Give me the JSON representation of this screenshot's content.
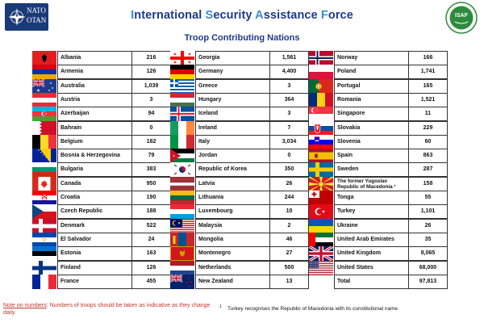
{
  "header": {
    "nato_line1": "NATO",
    "nato_line2": "OTAN",
    "title_parts": [
      {
        "text": "I",
        "initial": true
      },
      {
        "text": "nternational ",
        "initial": false
      },
      {
        "text": "S",
        "initial": true
      },
      {
        "text": "ecurity ",
        "initial": false
      },
      {
        "text": "A",
        "initial": true
      },
      {
        "text": "ssistance ",
        "initial": false
      },
      {
        "text": "F",
        "initial": true
      },
      {
        "text": "orce",
        "initial": false
      }
    ],
    "subtitle": "Troop Contributing Nations",
    "isaf_label": "ISAF"
  },
  "colors": {
    "title_dark": "#1d3a8a",
    "title_initial": "#3b8cd8",
    "note_red": "#c0392b"
  },
  "columns": [
    [
      {
        "name": "Albania",
        "troops": "216",
        "flag": "albania"
      },
      {
        "name": "Armenia",
        "troops": "126",
        "flag": "armenia"
      },
      {
        "name": "Australia",
        "troops": "1,039",
        "flag": "australia"
      },
      {
        "name": "Austria",
        "troops": "3",
        "flag": "austria"
      },
      {
        "name": "Azerbaijan",
        "troops": "94",
        "flag": "azerbaijan"
      },
      {
        "name": "Bahrain",
        "troops": "0",
        "flag": "bahrain"
      },
      {
        "name": "Belgium",
        "troops": "182",
        "flag": "belgium"
      },
      {
        "name": "Bosnia & Herzegovina",
        "troops": "79",
        "flag": "bosnia"
      },
      {
        "name": "Bulgaria",
        "troops": "383",
        "flag": "bulgaria"
      },
      {
        "name": "Canada",
        "troops": "950",
        "flag": "canada"
      },
      {
        "name": "Croatia",
        "troops": "190",
        "flag": "croatia"
      },
      {
        "name": "Czech Republic",
        "troops": "188",
        "flag": "czech"
      },
      {
        "name": "Denmark",
        "troops": "522",
        "flag": "denmark"
      },
      {
        "name": "El Salvador",
        "troops": "24",
        "flag": "elsalvador"
      },
      {
        "name": "Estonia",
        "troops": "163",
        "flag": "estonia"
      },
      {
        "name": "Finland",
        "troops": "126",
        "flag": "finland"
      },
      {
        "name": "France",
        "troops": "455",
        "flag": "france"
      }
    ],
    [
      {
        "name": "Georgia",
        "troops": "1,561",
        "flag": "georgia"
      },
      {
        "name": "Germany",
        "troops": "4,400",
        "flag": "germany"
      },
      {
        "name": "Greece",
        "troops": "3",
        "flag": "greece"
      },
      {
        "name": "Hungary",
        "troops": "364",
        "flag": "hungary"
      },
      {
        "name": "Iceland",
        "troops": "3",
        "flag": "iceland"
      },
      {
        "name": "Ireland",
        "troops": "7",
        "flag": "ireland"
      },
      {
        "name": "Italy",
        "troops": "3,034",
        "flag": "italy"
      },
      {
        "name": "Jordan",
        "troops": "0",
        "flag": "jordan"
      },
      {
        "name": "Republic of Korea",
        "troops": "350",
        "flag": "korea"
      },
      {
        "name": "Latvia",
        "troops": "26",
        "flag": "latvia"
      },
      {
        "name": "Lithuania",
        "troops": "244",
        "flag": "lithuania"
      },
      {
        "name": "Luxembourg",
        "troops": "10",
        "flag": "luxembourg"
      },
      {
        "name": "Malaysia",
        "troops": "2",
        "flag": "malaysia"
      },
      {
        "name": "Mongolia",
        "troops": "46",
        "flag": "mongolia"
      },
      {
        "name": "Montenegro",
        "troops": "27",
        "flag": "montenegro"
      },
      {
        "name": "Netherlands",
        "troops": "500",
        "flag": "netherlands"
      },
      {
        "name": "New Zealand",
        "troops": "13",
        "flag": "newzealand"
      }
    ],
    [
      {
        "name": "Norway",
        "troops": "166",
        "flag": "norway"
      },
      {
        "name": "Poland",
        "troops": "1,741",
        "flag": "poland"
      },
      {
        "name": "Portugal",
        "troops": "165",
        "flag": "portugal"
      },
      {
        "name": "Romania",
        "troops": "1,521",
        "flag": "romania"
      },
      {
        "name": "Singapore",
        "troops": "11",
        "flag": "singapore"
      },
      {
        "name": "Slovakia",
        "troops": "229",
        "flag": "slovakia"
      },
      {
        "name": "Slovenia",
        "troops": "60",
        "flag": "slovenia"
      },
      {
        "name": "Spain",
        "troops": "863",
        "flag": "spain"
      },
      {
        "name": "Sweden",
        "troops": "287",
        "flag": "sweden"
      },
      {
        "name": "The former Yugoslav Republic of Macedonia ¹",
        "troops": "158",
        "flag": "macedonia"
      },
      {
        "name": "Tonga",
        "troops": "55",
        "flag": "tonga"
      },
      {
        "name": "Turkey",
        "troops": "1,101",
        "flag": "turkey"
      },
      {
        "name": "Ukraine",
        "troops": "26",
        "flag": "ukraine"
      },
      {
        "name": "United Arab Emirates",
        "troops": "35",
        "flag": "uae"
      },
      {
        "name": "United Kingdom",
        "troops": "8,065",
        "flag": "uk"
      },
      {
        "name": "United States",
        "troops": "68,000",
        "flag": "usa"
      },
      {
        "name": "Total",
        "troops": "97,813",
        "flag": ""
      }
    ]
  ],
  "note": {
    "label": "Note on numbers",
    "text": ": Numbers of troops should be taken as indicative as they change daily."
  },
  "footnote": {
    "mark": "1",
    "text": "Turkey recognises the Republic of Macedonia with its constitutional name"
  }
}
